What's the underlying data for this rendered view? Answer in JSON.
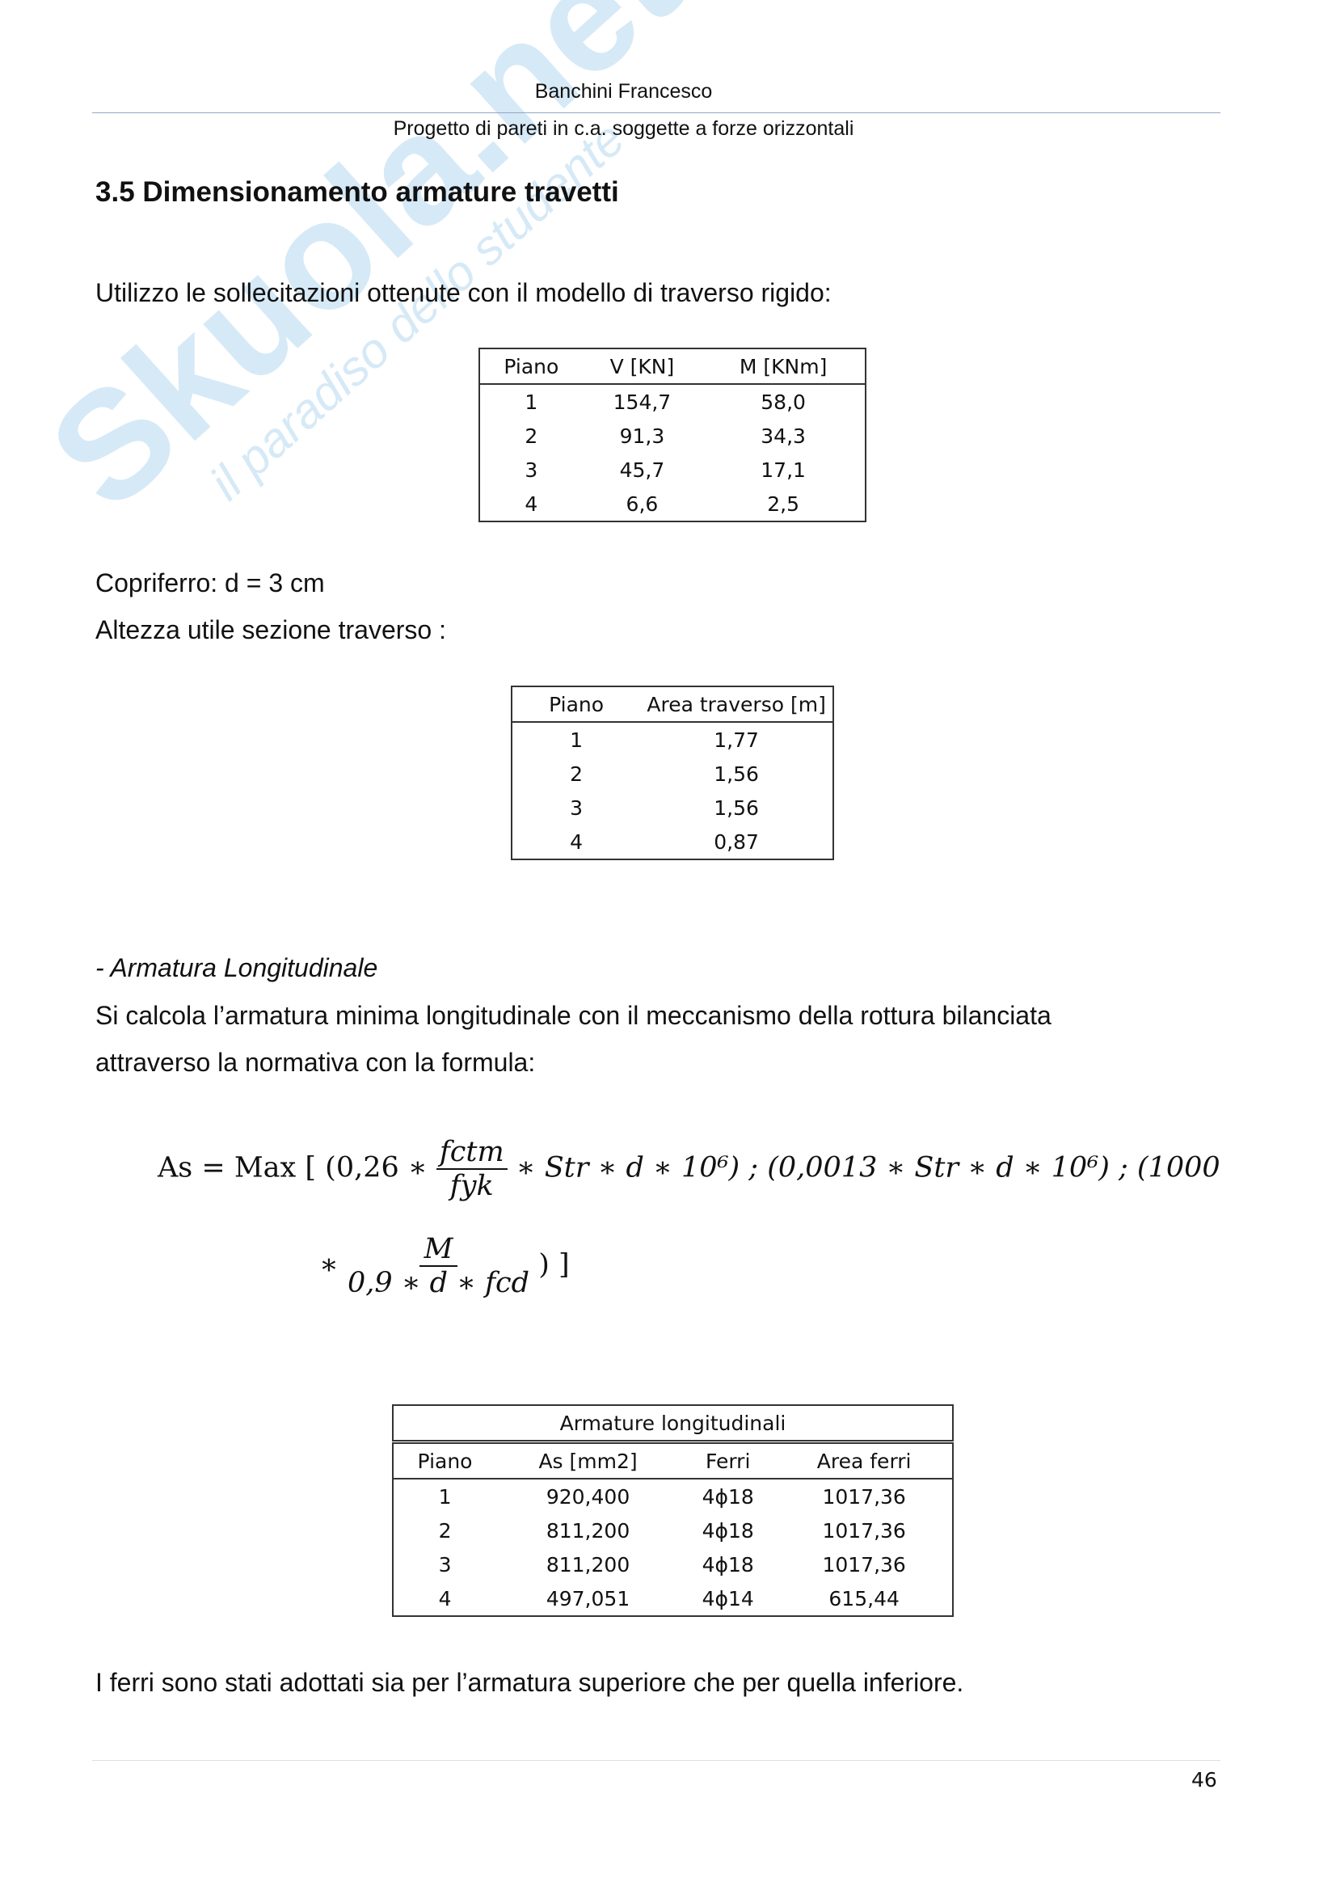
{
  "header": {
    "author": "Banchini Francesco",
    "subtitle": "Progetto di pareti in c.a. soggette a forze orizzontali"
  },
  "watermark": {
    "logo": "Skuola.net",
    "tagline": "il paradiso dello studente"
  },
  "section_title": "3.5 Dimensionamento armature travetti",
  "intro": "Utilizzo le sollecitazioni ottenute con il modello di traverso rigido:",
  "table1": {
    "headers": [
      "Piano",
      "V [KN]",
      "M [KNm]"
    ],
    "rows": [
      [
        "1",
        "154,7",
        "58,0"
      ],
      [
        "2",
        "91,3",
        "34,3"
      ],
      [
        "3",
        "45,7",
        "17,1"
      ],
      [
        "4",
        "6,6",
        "2,5"
      ]
    ]
  },
  "copriferro": "Copriferro: d = 3 cm",
  "altezza": "Altezza utile sezione traverso :",
  "table2": {
    "headers": [
      "Piano",
      "Area traverso [m]"
    ],
    "rows": [
      [
        "1",
        "1,77"
      ],
      [
        "2",
        "1,56"
      ],
      [
        "3",
        "1,56"
      ],
      [
        "4",
        "0,87"
      ]
    ]
  },
  "subsection": "- Armatura Longitudinale",
  "para1": "Si calcola l’armatura minima longitudinale con il meccanismo della rottura bilanciata",
  "para2": "attraverso la normativa con la formula:",
  "formula": {
    "lhs": "As = ",
    "max": "Max [ (0,26 ∗",
    "num1": "fctm",
    "den1": "fyk",
    "mid": "∗ Str ∗ d ∗ 10⁶) ; (0,0013 ∗ Str ∗ d ∗ 10⁶) ; (1000",
    "star": "∗",
    "num2": "M",
    "den2": "0,9 ∗ d ∗ fcd",
    "end": ") ]"
  },
  "table3": {
    "title": "Armature longitudinali",
    "headers": [
      "Piano",
      "As [mm2]",
      "Ferri",
      "Area ferri"
    ],
    "rows": [
      [
        "1",
        "920,400",
        "4ϕ18",
        "1017,36"
      ],
      [
        "2",
        "811,200",
        "4ϕ18",
        "1017,36"
      ],
      [
        "3",
        "811,200",
        "4ϕ18",
        "1017,36"
      ],
      [
        "4",
        "497,051",
        "4ϕ14",
        "615,44"
      ]
    ]
  },
  "conclusion": "I ferri sono stati adottati sia per l’armatura superiore che per quella inferiore.",
  "page_number": "46"
}
